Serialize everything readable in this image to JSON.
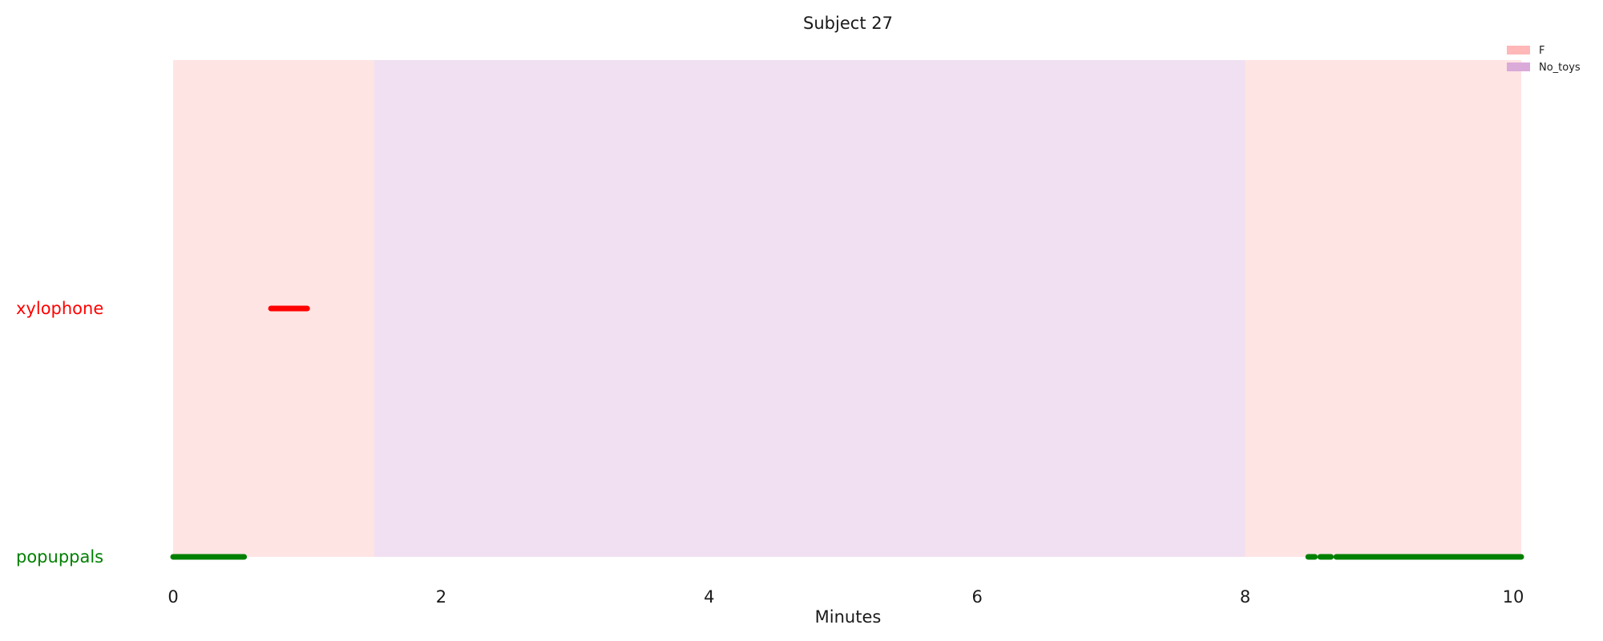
{
  "chart_data": {
    "type": "timeline",
    "title": "Subject 27",
    "xlabel": "Minutes",
    "xlim": [
      0,
      10.06
    ],
    "xticks": [
      0,
      2,
      4,
      6,
      8,
      10
    ],
    "categories": [
      {
        "name": "popuppals",
        "color": "#008000"
      },
      {
        "name": "xylophone",
        "color": "#ff0000"
      }
    ],
    "phases": [
      {
        "label": "F",
        "start": 0,
        "end": 1.5,
        "color": "#ffb3b3"
      },
      {
        "label": "No_toys",
        "start": 1.5,
        "end": 8.0,
        "color": "#d8a7d8"
      },
      {
        "label": "F",
        "start": 8.0,
        "end": 10.06,
        "color": "#ffb3b3"
      }
    ],
    "legend": [
      {
        "label": "F",
        "color": "#ffb3b3"
      },
      {
        "label": "No_toys",
        "color": "#d8a7d8"
      }
    ],
    "legend_position": "top-right",
    "segments": [
      {
        "category": "popuppals",
        "start": 0.0,
        "end": 0.53
      },
      {
        "category": "xylophone",
        "start": 0.73,
        "end": 1.0
      },
      {
        "category": "popuppals",
        "start": 8.47,
        "end": 8.52
      },
      {
        "category": "popuppals",
        "start": 8.56,
        "end": 8.64
      },
      {
        "category": "popuppals",
        "start": 8.68,
        "end": 10.06
      }
    ],
    "grid": false
  }
}
